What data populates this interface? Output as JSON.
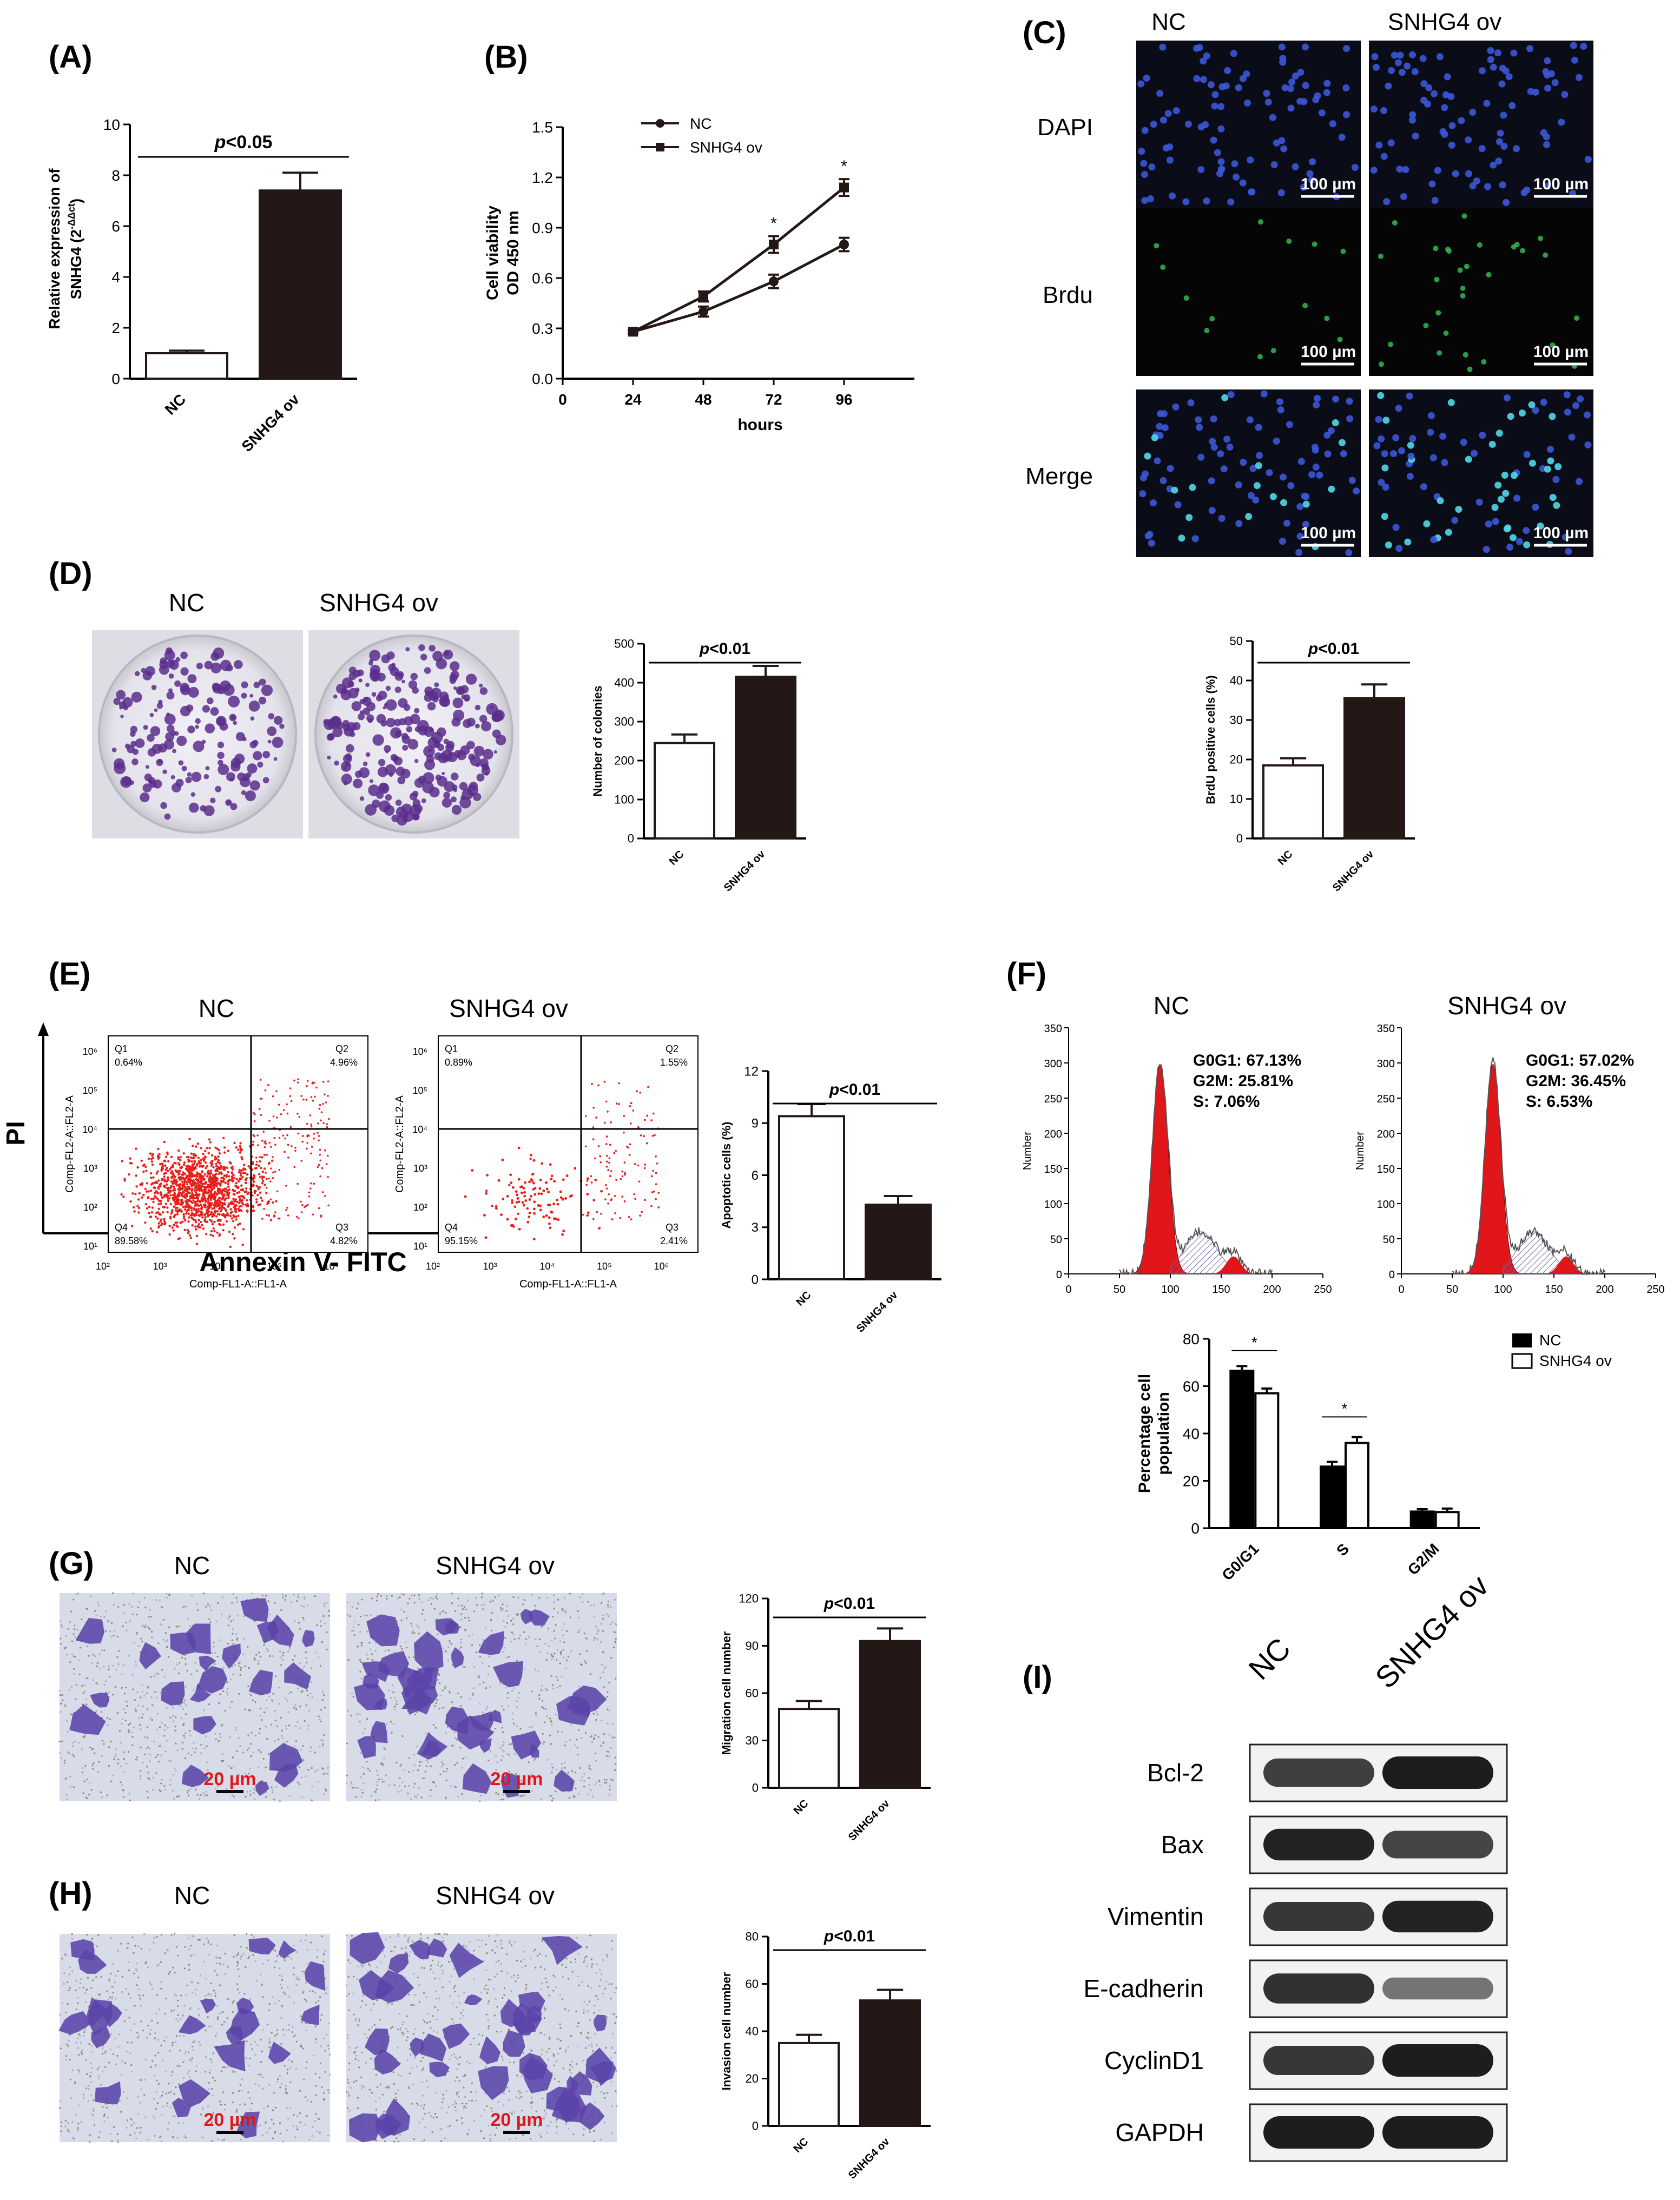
{
  "panels": [
    {
      "id": "A",
      "tag": "(A)"
    },
    {
      "id": "B",
      "tag": "(B)"
    },
    {
      "id": "C",
      "tag": "(C)"
    },
    {
      "id": "D",
      "tag": "(D)"
    },
    {
      "id": "E",
      "tag": "(E)"
    },
    {
      "id": "F",
      "tag": "(F)"
    },
    {
      "id": "G",
      "tag": "(G)"
    },
    {
      "id": "H",
      "tag": "(H)"
    },
    {
      "id": "I",
      "tag": "(I)"
    }
  ],
  "groups": {
    "nc": "NC",
    "ov": "SNHG4 ov"
  },
  "scale_bars": {
    "brdu": "100 µm",
    "transwell": "20 µm"
  },
  "panel_c": {
    "rows": [
      "DAPI",
      "Brdu",
      "Merge"
    ]
  },
  "panel_e": {
    "axis_x": "Annexin V- FITC",
    "axis_y": "PI",
    "plot_xlabel": "Comp-FL1-A::FL1-A",
    "plot_ylabel": "Comp-FL2-A::FL2-A",
    "quadrant_labels": [
      "Q1",
      "Q2",
      "Q3",
      "Q4"
    ],
    "nc": {
      "q1": "0.64%",
      "q2": "4.96%",
      "q3": "4.82%",
      "q4": "89.58%"
    },
    "ov": {
      "q1": "0.89%",
      "q2": "1.55%",
      "q3": "2.41%",
      "q4": "95.15%"
    }
  },
  "panel_f": {
    "hist_ylabel": "Number",
    "nc": {
      "g0g1": "G0G1: 67.13%",
      "g2m": "G2M: 25.81%",
      "s": "S: 7.06%"
    },
    "ov": {
      "g0g1": "G0G1: 57.02%",
      "g2m": "G2M: 36.45%",
      "s": "S: 6.53%"
    }
  },
  "panel_i": {
    "columns": [
      "NC",
      "SNHG4 ov"
    ],
    "bands": [
      {
        "name": "Bcl-2",
        "nc": 0.75,
        "ov": 1.0
      },
      {
        "name": "Bax",
        "nc": 0.95,
        "ov": 0.7
      },
      {
        "name": "Vimentin",
        "nc": 0.8,
        "ov": 0.95
      },
      {
        "name": "E-cadherin",
        "nc": 0.85,
        "ov": 0.35
      },
      {
        "name": "CyclinD1",
        "nc": 0.8,
        "ov": 1.0
      },
      {
        "name": "GAPDH",
        "nc": 1.0,
        "ov": 1.0
      }
    ]
  },
  "chart_data": [
    {
      "panel": "A",
      "type": "bar",
      "categories": [
        "NC",
        "SNHG4 ov"
      ],
      "values": [
        1.0,
        7.4
      ],
      "errors": [
        0.1,
        0.7
      ],
      "ylabel_main": "Relative expression of",
      "ylabel_sub": "SNHG4 (2",
      "ylabel_sup": "-ΔΔct",
      "ylabel_end": ")",
      "ylim": [
        0,
        10
      ],
      "yticks": [
        0,
        2,
        4,
        6,
        8,
        10
      ],
      "significance": "<0.05"
    },
    {
      "panel": "B",
      "type": "line",
      "x": [
        24,
        48,
        72,
        96
      ],
      "xlim": [
        0,
        120
      ],
      "xticks": [
        0,
        24,
        48,
        72,
        96
      ],
      "xlabel": "hours",
      "ylabel": "Cell viability",
      "ylabel2": "OD 450 nm",
      "ylim": [
        0,
        1.5
      ],
      "yticks": [
        "0.0",
        "0.3",
        "0.6",
        "0.9",
        "1.2",
        "1.5"
      ],
      "series": [
        {
          "name": "NC",
          "values": [
            0.28,
            0.4,
            0.58,
            0.8
          ],
          "errors": [
            0.01,
            0.03,
            0.04,
            0.04
          ]
        },
        {
          "name": "SNHG4 ov",
          "values": [
            0.28,
            0.49,
            0.8,
            1.14
          ],
          "errors": [
            0.01,
            0.03,
            0.05,
            0.05
          ]
        }
      ],
      "stars": [
        "*",
        "*"
      ],
      "star_x": [
        72,
        96
      ]
    },
    {
      "panel": "D",
      "type": "bar",
      "categories": [
        "NC",
        "SNHG4 ov"
      ],
      "values": [
        245,
        415
      ],
      "errors": [
        22,
        28
      ],
      "ylabel": "Number of colonies",
      "ylim": [
        0,
        500
      ],
      "yticks": [
        0,
        100,
        200,
        300,
        400,
        500
      ],
      "significance": "<0.01"
    },
    {
      "panel": "C",
      "type": "bar",
      "categories": [
        "NC",
        "SNHG4 ov"
      ],
      "values": [
        18.5,
        35.5
      ],
      "errors": [
        1.8,
        3.5
      ],
      "ylabel": "BrdU positive cells (%)",
      "ylim": [
        0,
        50
      ],
      "yticks": [
        0,
        10,
        20,
        30,
        40,
        50
      ],
      "significance": "<0.01"
    },
    {
      "panel": "E",
      "type": "bar",
      "categories": [
        "NC",
        "SNHG4 ov"
      ],
      "values": [
        9.4,
        4.3
      ],
      "errors": [
        0.7,
        0.5
      ],
      "ylabel": "Apoptotic cells (%)",
      "ylim": [
        0,
        12
      ],
      "yticks": [
        0,
        3,
        6,
        9,
        12
      ],
      "significance": "<0.01"
    },
    {
      "panel": "F",
      "type": "bar",
      "categories": [
        "G0/G1",
        "S",
        "G2/M"
      ],
      "series": [
        {
          "name": "NC",
          "values": [
            66.5,
            26.0,
            7.0
          ],
          "errors": [
            2,
            2,
            1
          ]
        },
        {
          "name": "SNHG4 ov",
          "values": [
            57.0,
            36.0,
            6.8
          ],
          "errors": [
            2,
            2.5,
            1.5
          ]
        }
      ],
      "ylabel": "Percentage cell",
      "ylabel2": "population",
      "ylim": [
        0,
        80
      ],
      "yticks": [
        0,
        20,
        40,
        60,
        80
      ],
      "stars": [
        "*",
        "*"
      ]
    },
    {
      "panel": "F-hist",
      "type": "area",
      "xlim": [
        0,
        250
      ],
      "xticks": [
        0,
        50,
        100,
        150,
        200,
        250
      ],
      "ylim": [
        0,
        350
      ],
      "yticks": [
        0,
        50,
        100,
        150,
        200,
        250,
        300,
        350
      ]
    },
    {
      "panel": "G",
      "type": "bar",
      "categories": [
        "NC",
        "SNHG4 ov"
      ],
      "values": [
        50,
        93
      ],
      "errors": [
        5,
        8
      ],
      "ylabel": "Migration cell number",
      "ylim": [
        0,
        120
      ],
      "yticks": [
        0,
        30,
        60,
        90,
        120
      ],
      "significance": "<0.01"
    },
    {
      "panel": "H",
      "type": "bar",
      "categories": [
        "NC",
        "SNHG4 ov"
      ],
      "values": [
        35,
        53
      ],
      "errors": [
        3.5,
        4.5
      ],
      "ylabel": "Invasion cell number",
      "ylim": [
        0,
        80
      ],
      "yticks": [
        0,
        20,
        40,
        60,
        80
      ],
      "significance": "<0.01"
    }
  ]
}
